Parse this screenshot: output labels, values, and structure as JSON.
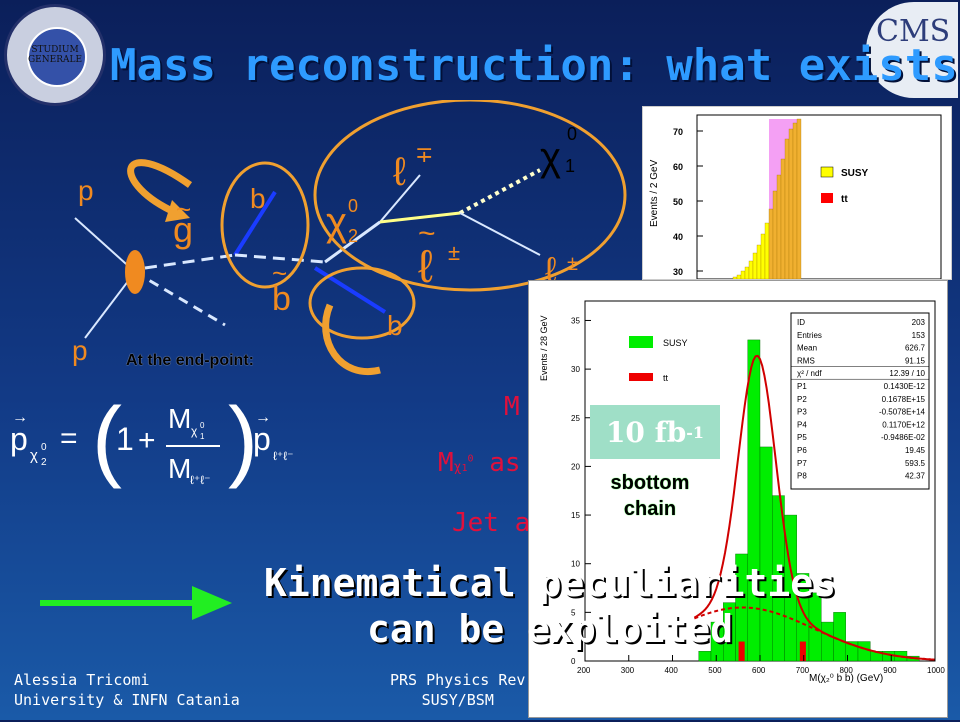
{
  "title": "Mass reconstruction: what exists",
  "logos": {
    "left_text": "STUDIUM GENERALE",
    "right_text": "CMS"
  },
  "diagram": {
    "labels": {
      "p_top": "p",
      "p_bottom": "p",
      "gluino": "g",
      "b1": "b",
      "sbottom": "b",
      "b2": "b",
      "chi2": "χ",
      "chi2_sup": "0",
      "chi2_sub": "2",
      "slepton": "ℓ",
      "slepton_sup": "±",
      "lep1": "ℓ",
      "lep1_sup": "∓",
      "lep2": "ℓ",
      "lep2_sup": "±",
      "chi1": "χ",
      "chi1_sup": "0",
      "chi1_sub": "1"
    }
  },
  "endpoint_label": "At the end-point:",
  "formula": {
    "p": "p",
    "chi2_sub": "χ",
    "chi2_idx": "2",
    "chi2_top": "0",
    "eq": "=",
    "one": "1",
    "plus": "+",
    "M_num": "M",
    "num_sub": "χ",
    "num_sub_idx": "1",
    "num_sub_top": "0",
    "M_den": "M",
    "den_sub": "ℓ⁺ℓ⁻",
    "p2": "p",
    "p2_sub": "ℓ⁺ℓ⁻"
  },
  "partial_texts": {
    "t1": "M",
    "t2": "M",
    "t2_sub": "χ",
    "t2_sub_idx": "1",
    "t2_sub_top": "0",
    "t2_rest": "as",
    "t3": "Jet a"
  },
  "conclusion": {
    "line1": "Kinematical peculiarities",
    "line2": "can be exploited"
  },
  "footer": {
    "author": "Alessia Tricomi",
    "affiliation": "University & INFN Catania",
    "meeting_line1": "PRS Physics Rev",
    "meeting_line2": "SUSY/BSM"
  },
  "top_plot": {
    "ylabel": "Events / 2 GeV",
    "yticks": [
      "70",
      "60",
      "50",
      "40",
      "30"
    ],
    "legend": [
      {
        "name": "SUSY",
        "color": "#ffff00"
      },
      {
        "name": "tt",
        "color": "#ff0000"
      }
    ],
    "highlight_color": "#f080f0"
  },
  "main_plot": {
    "ylabel": "Events / 28 GeV",
    "xlabel": "M(χ₂⁰ b b) (GeV)",
    "xticks": [
      "200",
      "300",
      "400",
      "500",
      "600",
      "700",
      "800",
      "900",
      "1000"
    ],
    "yticks": [
      "0",
      "5",
      "10",
      "15",
      "20",
      "25",
      "30",
      "35"
    ],
    "legend": [
      {
        "name": "SUSY",
        "color": "#00ee00"
      },
      {
        "name": "tt",
        "color": "#ee0000"
      }
    ],
    "lumi": "10 fb",
    "lumi_sup": "-1",
    "chain_label_1": "sbottom",
    "chain_label_2": "chain",
    "stats": [
      {
        "k": "ID",
        "v": "203"
      },
      {
        "k": "Entries",
        "v": "153"
      },
      {
        "k": "Mean",
        "v": "626.7"
      },
      {
        "k": "RMS",
        "v": "91.15"
      },
      {
        "k": "χ² / ndf",
        "v": "12.39   /   10"
      },
      {
        "k": "P1",
        "v": "0.1430E-12"
      },
      {
        "k": "P2",
        "v": "0.1678E+15"
      },
      {
        "k": "P3",
        "v": "-0.5078E+14"
      },
      {
        "k": "P4",
        "v": "0.1170E+12"
      },
      {
        "k": "P5",
        "v": "-0.9486E-02"
      },
      {
        "k": "P6",
        "v": "19.45"
      },
      {
        "k": "P7",
        "v": "593.5"
      },
      {
        "k": "P8",
        "v": "42.37"
      }
    ]
  },
  "chart_data": {
    "type": "bar",
    "xlabel": "M(χ₂⁰ b b) (GeV)",
    "ylabel": "Events / 28 GeV",
    "xlim": [
      200,
      1000
    ],
    "ylim": [
      0,
      37
    ],
    "bin_width": 28,
    "series": [
      {
        "name": "SUSY",
        "x": [
          390,
          418,
          446,
          474,
          502,
          530,
          558,
          586,
          614,
          642,
          670,
          698,
          726,
          754,
          782,
          810,
          838,
          866,
          894,
          922,
          950,
          978
        ],
        "values": [
          0,
          0,
          0,
          1,
          4,
          6,
          11,
          33,
          22,
          17,
          15,
          9,
          7,
          4,
          5,
          2,
          2,
          1,
          1,
          1,
          0.5,
          0
        ]
      },
      {
        "name": "tt",
        "x": [
          558,
          698
        ],
        "values": [
          2,
          2
        ]
      }
    ]
  }
}
